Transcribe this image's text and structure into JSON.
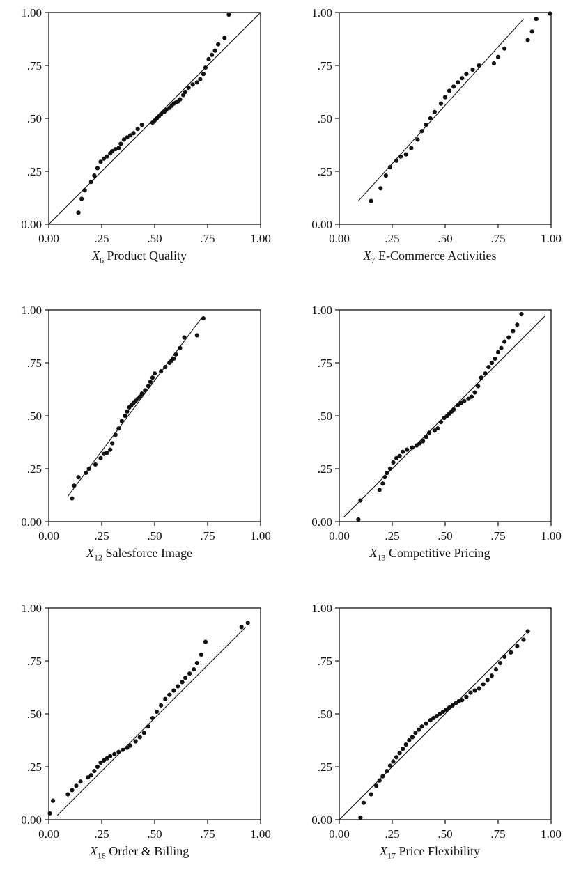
{
  "chart_data": [
    {
      "type": "scatter",
      "title": "",
      "xlabel": {
        "symbol": "X",
        "sub": "6",
        "text": "Product Quality"
      },
      "ylabel": "",
      "xlim": [
        0,
        1
      ],
      "ylim": [
        0,
        1
      ],
      "tick_labels": [
        "0.00",
        ".25",
        ".50",
        ".75",
        "1.00"
      ],
      "reference_line": [
        [
          0.0,
          0.0
        ],
        [
          1.0,
          1.0
        ]
      ],
      "x": [
        0.14,
        0.155,
        0.17,
        0.2,
        0.215,
        0.23,
        0.245,
        0.26,
        0.275,
        0.29,
        0.3,
        0.315,
        0.33,
        0.34,
        0.355,
        0.37,
        0.385,
        0.4,
        0.42,
        0.44,
        0.49,
        0.5,
        0.51,
        0.52,
        0.53,
        0.545,
        0.555,
        0.57,
        0.58,
        0.59,
        0.6,
        0.61,
        0.62,
        0.635,
        0.645,
        0.66,
        0.68,
        0.7,
        0.715,
        0.73,
        0.74,
        0.755,
        0.77,
        0.785,
        0.8,
        0.83,
        0.85
      ],
      "y": [
        0.055,
        0.12,
        0.16,
        0.2,
        0.23,
        0.265,
        0.295,
        0.31,
        0.32,
        0.335,
        0.345,
        0.355,
        0.36,
        0.38,
        0.4,
        0.41,
        0.42,
        0.43,
        0.45,
        0.47,
        0.48,
        0.49,
        0.5,
        0.51,
        0.52,
        0.53,
        0.54,
        0.55,
        0.56,
        0.57,
        0.575,
        0.58,
        0.59,
        0.61,
        0.625,
        0.645,
        0.66,
        0.67,
        0.685,
        0.71,
        0.74,
        0.78,
        0.8,
        0.82,
        0.85,
        0.88,
        0.99
      ]
    },
    {
      "type": "scatter",
      "title": "",
      "xlabel": {
        "symbol": "X",
        "sub": "7",
        "text": "E-Commerce Activities"
      },
      "ylabel": "",
      "xlim": [
        0,
        1
      ],
      "ylim": [
        0,
        1
      ],
      "tick_labels": [
        "0.00",
        ".25",
        ".50",
        ".75",
        "1.00"
      ],
      "reference_line": [
        [
          0.09,
          0.11
        ],
        [
          0.87,
          0.97
        ]
      ],
      "x": [
        0.15,
        0.195,
        0.22,
        0.24,
        0.27,
        0.29,
        0.315,
        0.34,
        0.37,
        0.39,
        0.41,
        0.43,
        0.45,
        0.48,
        0.5,
        0.52,
        0.54,
        0.56,
        0.58,
        0.6,
        0.63,
        0.66,
        0.73,
        0.75,
        0.78,
        0.89,
        0.91,
        0.93,
        0.995
      ],
      "y": [
        0.11,
        0.17,
        0.23,
        0.27,
        0.3,
        0.32,
        0.33,
        0.36,
        0.4,
        0.44,
        0.47,
        0.5,
        0.53,
        0.57,
        0.6,
        0.63,
        0.65,
        0.67,
        0.69,
        0.71,
        0.73,
        0.75,
        0.76,
        0.79,
        0.83,
        0.87,
        0.91,
        0.97,
        0.995
      ]
    },
    {
      "type": "scatter",
      "title": "",
      "xlabel": {
        "symbol": "X",
        "sub": "12",
        "text": "Salesforce Image"
      },
      "ylabel": "",
      "xlim": [
        0,
        1
      ],
      "ylim": [
        0,
        1
      ],
      "tick_labels": [
        "0.00",
        ".25",
        ".50",
        ".75",
        "1.00"
      ],
      "reference_line": [
        [
          0.09,
          0.12
        ],
        [
          0.72,
          0.96
        ]
      ],
      "x": [
        0.11,
        0.12,
        0.14,
        0.175,
        0.19,
        0.22,
        0.245,
        0.26,
        0.275,
        0.29,
        0.3,
        0.315,
        0.33,
        0.345,
        0.36,
        0.37,
        0.38,
        0.39,
        0.4,
        0.41,
        0.42,
        0.43,
        0.44,
        0.455,
        0.47,
        0.48,
        0.49,
        0.5,
        0.53,
        0.55,
        0.57,
        0.58,
        0.59,
        0.6,
        0.62,
        0.64,
        0.7,
        0.73
      ],
      "y": [
        0.11,
        0.17,
        0.21,
        0.23,
        0.25,
        0.27,
        0.3,
        0.32,
        0.325,
        0.34,
        0.37,
        0.41,
        0.44,
        0.475,
        0.5,
        0.52,
        0.54,
        0.55,
        0.56,
        0.57,
        0.58,
        0.59,
        0.605,
        0.62,
        0.64,
        0.66,
        0.68,
        0.7,
        0.71,
        0.73,
        0.75,
        0.76,
        0.77,
        0.79,
        0.82,
        0.87,
        0.88,
        0.96
      ]
    },
    {
      "type": "scatter",
      "title": "",
      "xlabel": {
        "symbol": "X",
        "sub": "13",
        "text": "Competitive Pricing"
      },
      "ylabel": "",
      "xlim": [
        0,
        1
      ],
      "ylim": [
        0,
        1
      ],
      "tick_labels": [
        "0.00",
        ".25",
        ".50",
        ".75",
        "1.00"
      ],
      "reference_line": [
        [
          0.02,
          0.02
        ],
        [
          0.97,
          0.97
        ]
      ],
      "x": [
        0.09,
        0.1,
        0.19,
        0.205,
        0.215,
        0.225,
        0.24,
        0.255,
        0.27,
        0.285,
        0.3,
        0.32,
        0.345,
        0.365,
        0.38,
        0.395,
        0.41,
        0.425,
        0.45,
        0.465,
        0.48,
        0.495,
        0.51,
        0.52,
        0.53,
        0.54,
        0.56,
        0.575,
        0.59,
        0.61,
        0.625,
        0.64,
        0.655,
        0.67,
        0.69,
        0.705,
        0.72,
        0.735,
        0.75,
        0.765,
        0.78,
        0.8,
        0.82,
        0.84,
        0.86
      ],
      "y": [
        0.01,
        0.1,
        0.15,
        0.18,
        0.21,
        0.23,
        0.25,
        0.28,
        0.3,
        0.31,
        0.33,
        0.34,
        0.35,
        0.36,
        0.37,
        0.38,
        0.4,
        0.42,
        0.43,
        0.44,
        0.47,
        0.49,
        0.5,
        0.51,
        0.52,
        0.53,
        0.55,
        0.56,
        0.57,
        0.58,
        0.59,
        0.61,
        0.64,
        0.68,
        0.7,
        0.73,
        0.75,
        0.77,
        0.8,
        0.82,
        0.85,
        0.87,
        0.9,
        0.93,
        0.98
      ]
    },
    {
      "type": "scatter",
      "title": "",
      "xlabel": {
        "symbol": "X",
        "sub": "16",
        "text": "Order & Billing"
      },
      "ylabel": "",
      "xlim": [
        0,
        1
      ],
      "ylim": [
        0,
        1
      ],
      "tick_labels": [
        "0.00",
        ".25",
        ".50",
        ".75",
        "1.00"
      ],
      "reference_line": [
        [
          0.04,
          0.02
        ],
        [
          0.93,
          0.91
        ]
      ],
      "x": [
        0.005,
        0.02,
        0.09,
        0.11,
        0.13,
        0.15,
        0.185,
        0.2,
        0.215,
        0.23,
        0.245,
        0.26,
        0.275,
        0.29,
        0.31,
        0.33,
        0.35,
        0.37,
        0.385,
        0.41,
        0.43,
        0.45,
        0.47,
        0.49,
        0.51,
        0.53,
        0.55,
        0.57,
        0.59,
        0.61,
        0.63,
        0.645,
        0.665,
        0.685,
        0.7,
        0.72,
        0.74,
        0.91,
        0.94
      ],
      "y": [
        0.03,
        0.09,
        0.12,
        0.14,
        0.16,
        0.18,
        0.2,
        0.21,
        0.23,
        0.25,
        0.27,
        0.28,
        0.29,
        0.3,
        0.31,
        0.32,
        0.33,
        0.34,
        0.35,
        0.37,
        0.39,
        0.41,
        0.44,
        0.48,
        0.51,
        0.54,
        0.57,
        0.59,
        0.61,
        0.63,
        0.65,
        0.67,
        0.69,
        0.71,
        0.74,
        0.78,
        0.84,
        0.91,
        0.93
      ]
    },
    {
      "type": "scatter",
      "title": "",
      "xlabel": {
        "symbol": "X",
        "sub": "17",
        "text": "Price Flexibility"
      },
      "ylabel": "",
      "xlim": [
        0,
        1
      ],
      "ylim": [
        0,
        1
      ],
      "tick_labels": [
        "0.00",
        ".25",
        ".50",
        ".75",
        "1.00"
      ],
      "reference_line": [
        [
          0.0,
          0.0
        ],
        [
          0.88,
          0.88
        ]
      ],
      "x": [
        0.1,
        0.115,
        0.15,
        0.175,
        0.19,
        0.205,
        0.225,
        0.24,
        0.255,
        0.27,
        0.285,
        0.3,
        0.315,
        0.33,
        0.345,
        0.36,
        0.375,
        0.39,
        0.41,
        0.43,
        0.445,
        0.46,
        0.475,
        0.49,
        0.505,
        0.52,
        0.535,
        0.55,
        0.565,
        0.58,
        0.6,
        0.62,
        0.64,
        0.66,
        0.68,
        0.7,
        0.72,
        0.74,
        0.76,
        0.78,
        0.81,
        0.84,
        0.87,
        0.89
      ],
      "y": [
        0.01,
        0.08,
        0.12,
        0.16,
        0.185,
        0.205,
        0.23,
        0.255,
        0.275,
        0.295,
        0.315,
        0.335,
        0.355,
        0.375,
        0.39,
        0.41,
        0.425,
        0.44,
        0.455,
        0.47,
        0.48,
        0.49,
        0.5,
        0.51,
        0.52,
        0.53,
        0.54,
        0.55,
        0.56,
        0.565,
        0.58,
        0.6,
        0.61,
        0.62,
        0.64,
        0.66,
        0.68,
        0.71,
        0.74,
        0.77,
        0.79,
        0.82,
        0.85,
        0.89
      ]
    }
  ]
}
